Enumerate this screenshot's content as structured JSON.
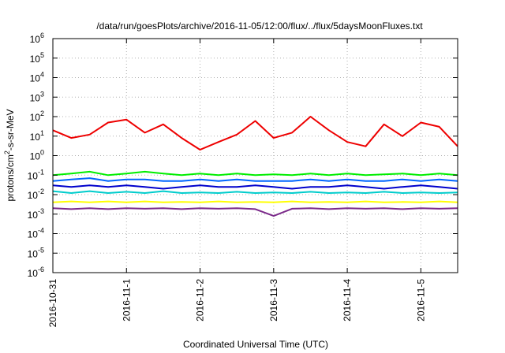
{
  "chart_data": {
    "type": "line",
    "title": "/data/run/goesPlots/archive/2016-11-05/12:00/flux/../flux/5daysMoonFluxes.txt",
    "xlabel": "Coordinated Universal Time (UTC)",
    "ylabel": "protons/cm²-s-sr-MeV",
    "yscale": "log",
    "ylim": [
      1e-06,
      1000000.0
    ],
    "xlim": [
      "2016-10-31T00:00",
      "2016-11-05T12:00"
    ],
    "x_ticks": [
      "2016-10-31",
      "2016-11-1",
      "2016-11-2",
      "2016-11-3",
      "2016-11-4",
      "2016-11-5"
    ],
    "y_ticks": [
      {
        "base": "10",
        "exp": "-6",
        "value": 1e-06
      },
      {
        "base": "10",
        "exp": "-5",
        "value": 1e-05
      },
      {
        "base": "10",
        "exp": "-4",
        "value": 0.0001
      },
      {
        "base": "10",
        "exp": "-3",
        "value": 0.001
      },
      {
        "base": "10",
        "exp": "-2",
        "value": 0.01
      },
      {
        "base": "10",
        "exp": "-1",
        "value": 0.1
      },
      {
        "base": "10",
        "exp": "0",
        "value": 1
      },
      {
        "base": "10",
        "exp": "1",
        "value": 10
      },
      {
        "base": "10",
        "exp": "2",
        "value": 100
      },
      {
        "base": "10",
        "exp": "3",
        "value": 1000
      },
      {
        "base": "10",
        "exp": "4",
        "value": 10000
      },
      {
        "base": "10",
        "exp": "5",
        "value": 100000
      },
      {
        "base": "10",
        "exp": "6",
        "value": 1000000
      }
    ],
    "grid": true,
    "x": [
      "2016-10-31T00:00",
      "2016-10-31T06:00",
      "2016-10-31T12:00",
      "2016-10-31T18:00",
      "2016-11-01T00:00",
      "2016-11-01T06:00",
      "2016-11-01T12:00",
      "2016-11-01T18:00",
      "2016-11-02T00:00",
      "2016-11-02T06:00",
      "2016-11-02T12:00",
      "2016-11-02T18:00",
      "2016-11-03T00:00",
      "2016-11-03T06:00",
      "2016-11-03T12:00",
      "2016-11-03T18:00",
      "2016-11-04T00:00",
      "2016-11-04T06:00",
      "2016-11-04T12:00",
      "2016-11-04T18:00",
      "2016-11-05T00:00",
      "2016-11-05T06:00",
      "2016-11-05T12:00"
    ],
    "series": [
      {
        "color": "#ee0000",
        "values": [
          20,
          8,
          12,
          50,
          70,
          15,
          40,
          8,
          2,
          5,
          12,
          60,
          8,
          15,
          100,
          20,
          5,
          3,
          40,
          10,
          50,
          30,
          3
        ]
      },
      {
        "color": "#00ee00",
        "values": [
          0.1,
          0.12,
          0.15,
          0.1,
          0.12,
          0.15,
          0.12,
          0.1,
          0.12,
          0.1,
          0.12,
          0.1,
          0.11,
          0.1,
          0.12,
          0.1,
          0.12,
          0.1,
          0.11,
          0.12,
          0.1,
          0.12,
          0.1
        ]
      },
      {
        "color": "#0066ff",
        "values": [
          0.05,
          0.06,
          0.07,
          0.05,
          0.06,
          0.06,
          0.05,
          0.05,
          0.06,
          0.05,
          0.06,
          0.05,
          0.05,
          0.05,
          0.06,
          0.05,
          0.06,
          0.05,
          0.05,
          0.06,
          0.05,
          0.06,
          0.05
        ]
      },
      {
        "color": "#0000cc",
        "values": [
          0.03,
          0.025,
          0.03,
          0.025,
          0.03,
          0.025,
          0.02,
          0.025,
          0.03,
          0.025,
          0.025,
          0.03,
          0.025,
          0.02,
          0.025,
          0.025,
          0.03,
          0.025,
          0.02,
          0.025,
          0.03,
          0.025,
          0.02
        ]
      },
      {
        "color": "#00cccc",
        "values": [
          0.015,
          0.012,
          0.015,
          0.012,
          0.014,
          0.012,
          0.015,
          0.012,
          0.013,
          0.012,
          0.014,
          0.012,
          0.013,
          0.012,
          0.014,
          0.012,
          0.013,
          0.012,
          0.014,
          0.012,
          0.013,
          0.012,
          0.013
        ]
      },
      {
        "color": "#ffff00",
        "values": [
          0.004,
          0.0045,
          0.004,
          0.0045,
          0.004,
          0.0045,
          0.004,
          0.0042,
          0.004,
          0.0045,
          0.004,
          0.0042,
          0.004,
          0.0045,
          0.004,
          0.0042,
          0.004,
          0.0045,
          0.004,
          0.0042,
          0.004,
          0.0045,
          0.004
        ]
      },
      {
        "color": "#7b2a8a",
        "values": [
          0.002,
          0.0018,
          0.002,
          0.0018,
          0.002,
          0.0019,
          0.002,
          0.0018,
          0.002,
          0.0019,
          0.002,
          0.0018,
          0.0008,
          0.0019,
          0.002,
          0.0018,
          0.002,
          0.0019,
          0.002,
          0.0018,
          0.002,
          0.0019,
          0.002
        ]
      }
    ]
  }
}
